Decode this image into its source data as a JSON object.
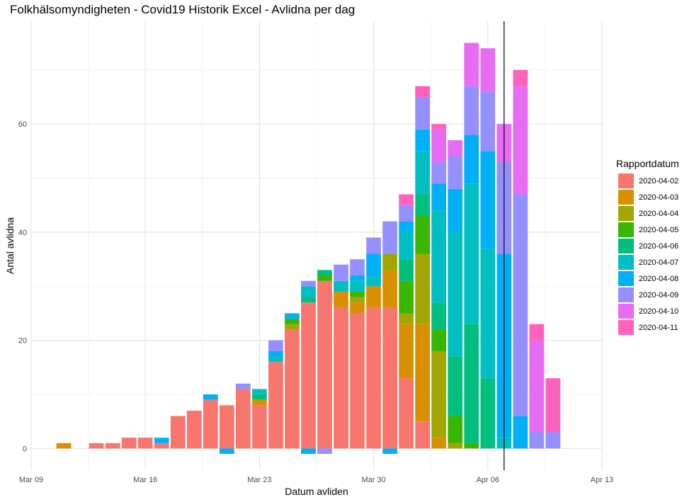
{
  "chart_data": {
    "type": "bar",
    "stacked": true,
    "title": "Folkhälsomyndigheten - Covid19 Historik Excel - Avlidna per dag",
    "xlabel": "Datum avliden",
    "ylabel": "Antal avlidna",
    "legend_title": "Rapportdatum",
    "legend_position": "right",
    "grid": true,
    "x_tick_labels": [
      "Mar 09",
      "Mar 16",
      "Mar 23",
      "Mar 30",
      "Apr 06",
      "Apr 13"
    ],
    "x_tick_dates": [
      "2020-03-09",
      "2020-03-16",
      "2020-03-23",
      "2020-03-30",
      "2020-04-06",
      "2020-04-13"
    ],
    "xlim": [
      "2020-03-09",
      "2020-04-13"
    ],
    "y_ticks": [
      0,
      20,
      40,
      60
    ],
    "ylim": [
      -4,
      79
    ],
    "vline_date": "2020-04-07",
    "series": [
      {
        "name": "2020-04-02",
        "color": "#F8766D"
      },
      {
        "name": "2020-04-03",
        "color": "#D89000"
      },
      {
        "name": "2020-04-04",
        "color": "#A3A500"
      },
      {
        "name": "2020-04-05",
        "color": "#39B600"
      },
      {
        "name": "2020-04-06",
        "color": "#00BF7D"
      },
      {
        "name": "2020-04-07",
        "color": "#00BFC4"
      },
      {
        "name": "2020-04-08",
        "color": "#00B0F6"
      },
      {
        "name": "2020-04-09",
        "color": "#9590FF"
      },
      {
        "name": "2020-04-10",
        "color": "#E76BF3"
      },
      {
        "name": "2020-04-11",
        "color": "#FF62BC"
      }
    ],
    "bars": [
      {
        "date": "2020-03-11",
        "values": [
          0,
          1,
          0,
          0,
          0,
          0,
          0,
          0,
          0,
          0
        ]
      },
      {
        "date": "2020-03-13",
        "values": [
          1,
          0,
          0,
          0,
          0,
          0,
          0,
          0,
          0,
          0
        ]
      },
      {
        "date": "2020-03-14",
        "values": [
          1,
          0,
          0,
          0,
          0,
          0,
          0,
          0,
          0,
          0
        ]
      },
      {
        "date": "2020-03-15",
        "values": [
          2,
          0,
          0,
          0,
          0,
          0,
          0,
          0,
          0,
          0
        ]
      },
      {
        "date": "2020-03-16",
        "values": [
          2,
          0,
          0,
          0,
          0,
          0,
          0,
          0,
          0,
          0
        ]
      },
      {
        "date": "2020-03-17",
        "values": [
          1,
          0,
          0,
          0,
          0,
          0,
          1,
          0,
          0,
          0
        ]
      },
      {
        "date": "2020-03-18",
        "values": [
          6,
          0,
          0,
          0,
          0,
          0,
          0,
          0,
          0,
          0
        ]
      },
      {
        "date": "2020-03-19",
        "values": [
          7,
          0,
          0,
          0,
          0,
          0,
          0,
          0,
          0,
          0
        ]
      },
      {
        "date": "2020-03-20",
        "values": [
          9,
          0,
          0,
          0,
          0,
          0,
          1,
          0,
          0,
          0
        ]
      },
      {
        "date": "2020-03-21",
        "values": [
          8,
          0,
          0,
          0,
          0,
          0,
          -1,
          0,
          0,
          0
        ]
      },
      {
        "date": "2020-03-22",
        "values": [
          11,
          0,
          0,
          0,
          0,
          0,
          0,
          1,
          0,
          0
        ]
      },
      {
        "date": "2020-03-23",
        "values": [
          8,
          1,
          0,
          0,
          1,
          1,
          0,
          0,
          0,
          0
        ]
      },
      {
        "date": "2020-03-24",
        "values": [
          16,
          0,
          0,
          0,
          0,
          1,
          1,
          2,
          0,
          0
        ]
      },
      {
        "date": "2020-03-25",
        "values": [
          22,
          0,
          1,
          1,
          0,
          0,
          1,
          0,
          0,
          0
        ]
      },
      {
        "date": "2020-03-26",
        "values": [
          27,
          0,
          0,
          0,
          1,
          2,
          -1,
          1,
          0,
          0
        ]
      },
      {
        "date": "2020-03-27",
        "values": [
          31,
          0,
          0,
          1,
          1,
          0,
          0,
          -1,
          0,
          0
        ]
      },
      {
        "date": "2020-03-28",
        "values": [
          26,
          3,
          0,
          0,
          0,
          2,
          0,
          3,
          0,
          0
        ]
      },
      {
        "date": "2020-03-29",
        "values": [
          25,
          2,
          1,
          1,
          0,
          2,
          1,
          3,
          0,
          0
        ]
      },
      {
        "date": "2020-03-30",
        "values": [
          26,
          4,
          0,
          0,
          0,
          2,
          4,
          3,
          0,
          0
        ]
      },
      {
        "date": "2020-03-31",
        "values": [
          26,
          7,
          3,
          0,
          0,
          0,
          -1,
          6,
          0,
          0
        ]
      },
      {
        "date": "2020-04-01",
        "values": [
          13,
          10,
          2,
          6,
          4,
          5,
          2,
          3,
          0,
          2
        ]
      },
      {
        "date": "2020-04-02",
        "values": [
          5,
          18,
          13,
          7,
          4,
          8,
          4,
          6,
          0,
          2
        ]
      },
      {
        "date": "2020-04-03",
        "values": [
          0,
          2,
          16,
          4,
          5,
          17,
          5,
          4,
          6,
          1
        ]
      },
      {
        "date": "2020-04-04",
        "values": [
          0,
          0,
          1,
          5,
          11,
          23,
          8,
          6,
          3,
          0
        ]
      },
      {
        "date": "2020-04-05",
        "values": [
          0,
          0,
          0,
          1,
          22,
          26,
          9,
          9,
          8,
          0
        ]
      },
      {
        "date": "2020-04-06",
        "values": [
          0,
          0,
          0,
          0,
          13,
          24,
          18,
          11,
          8,
          0
        ]
      },
      {
        "date": "2020-04-07",
        "values": [
          0,
          0,
          0,
          0,
          0,
          2,
          34,
          17,
          7,
          0
        ]
      },
      {
        "date": "2020-04-08",
        "values": [
          0,
          0,
          0,
          0,
          0,
          0,
          6,
          41,
          20,
          3
        ]
      },
      {
        "date": "2020-04-09",
        "values": [
          0,
          0,
          0,
          0,
          0,
          0,
          0,
          3,
          17,
          3
        ]
      },
      {
        "date": "2020-04-10",
        "values": [
          0,
          0,
          0,
          0,
          0,
          0,
          0,
          3,
          0,
          10
        ]
      }
    ]
  }
}
